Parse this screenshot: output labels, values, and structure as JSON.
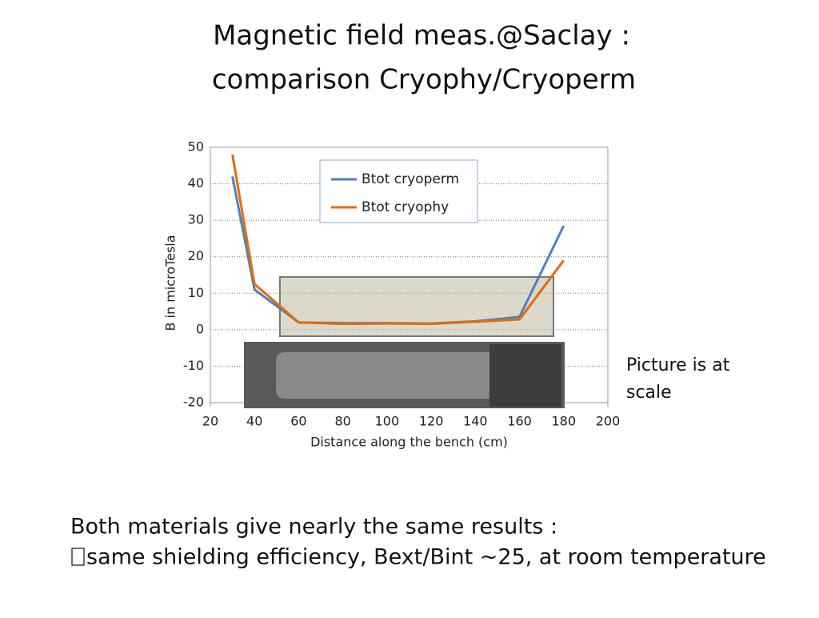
{
  "slide": {
    "title": [
      "Magnetic field meas.@Saclay :",
      "comparison Cryophy/Cryoperm"
    ],
    "side_note": [
      "Picture is at",
      "scale"
    ],
    "body": [
      "Both materials give nearly the same results :",
      "same shielding efficiency, Bext/Bint ~25, at room temperature"
    ]
  },
  "chart_data": {
    "type": "line",
    "x_label": "Distance along the bench (cm)",
    "y_label": "B in microTesla",
    "x": [
      30,
      40,
      60,
      80,
      100,
      120,
      140,
      160,
      180
    ],
    "series": [
      {
        "name": "Btot cryoperm",
        "color": "#4f81bd",
        "values": [
          42,
          11,
          2,
          1.8,
          1.8,
          1.7,
          2.3,
          3.5,
          28.5
        ]
      },
      {
        "name": "Btot cryophy",
        "color": "#e46c0a",
        "values": [
          48,
          12.5,
          2,
          1.6,
          1.7,
          1.6,
          2.2,
          2.8,
          19
        ]
      }
    ],
    "xlim": [
      20,
      200
    ],
    "xticks": [
      20,
      40,
      60,
      80,
      100,
      120,
      140,
      160,
      180,
      200
    ],
    "ylim": [
      -20,
      50
    ],
    "yticks": [
      -20,
      -10,
      0,
      10,
      20,
      30,
      40,
      50
    ],
    "grid": true,
    "legend": "top"
  }
}
